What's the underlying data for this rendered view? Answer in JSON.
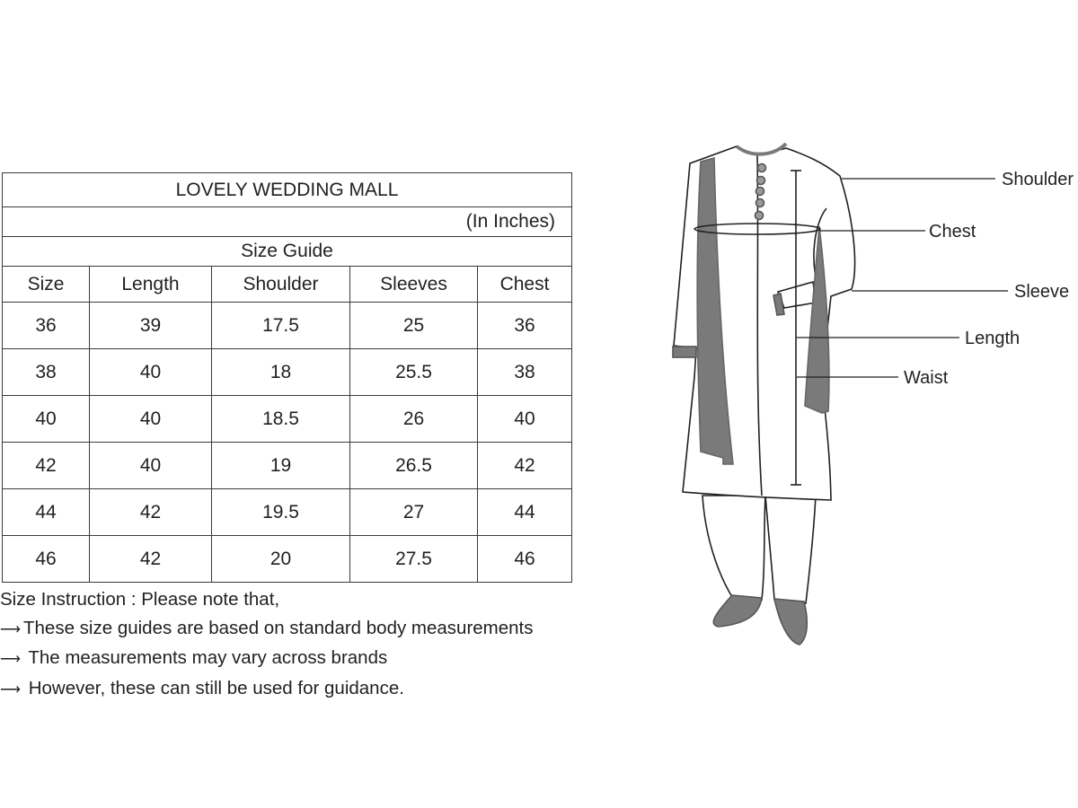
{
  "table": {
    "title": "LOVELY WEDDING MALL",
    "unit": "(In Inches)",
    "subtitle": "Size Guide",
    "columns": [
      "Size",
      "Length",
      "Shoulder",
      "Sleeves",
      "Chest"
    ],
    "rows": [
      [
        "36",
        "39",
        "17.5",
        "25",
        "36"
      ],
      [
        "38",
        "40",
        "18",
        "25.5",
        "38"
      ],
      [
        "40",
        "40",
        "18.5",
        "26",
        "40"
      ],
      [
        "42",
        "40",
        "19",
        "26.5",
        "42"
      ],
      [
        "44",
        "42",
        "19.5",
        "27",
        "44"
      ],
      [
        "46",
        "42",
        "20",
        "27.5",
        "46"
      ]
    ]
  },
  "notes": {
    "heading": "Size Instruction : Please note that,",
    "bullet_icon": "right-arrow-icon",
    "items": [
      "These size guides are based on standard body measurements",
      "The measurements may vary across brands",
      "However, these can still be used for guidance."
    ]
  },
  "figure": {
    "labels": {
      "shoulder": "Shoulder",
      "chest": "Chest",
      "sleeve": "Sleeve",
      "length": "Length",
      "waist": "Waist"
    },
    "colors": {
      "accent_gray": "#7a7a7a",
      "outline": "#231f20"
    }
  }
}
